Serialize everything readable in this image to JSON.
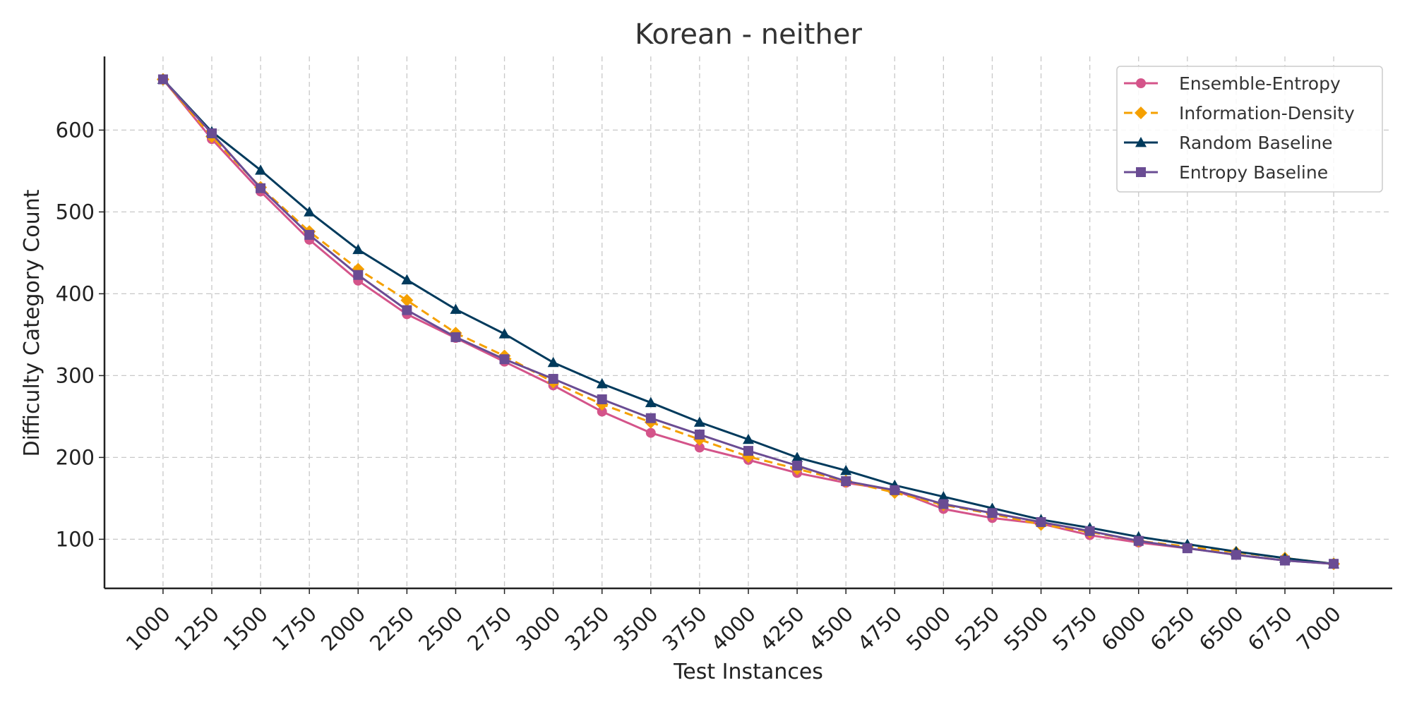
{
  "chart_data": {
    "type": "line",
    "title": "Korean - neither",
    "xlabel": "Test Instances",
    "ylabel": "Difficulty Category Count",
    "x": [
      1000,
      1250,
      1500,
      1750,
      2000,
      2250,
      2500,
      2750,
      3000,
      3250,
      3500,
      3750,
      4000,
      4250,
      4500,
      4750,
      5000,
      5250,
      5500,
      5750,
      6000,
      6250,
      6500,
      6750,
      7000
    ],
    "x_tick_labels": [
      "1000",
      "1250",
      "1500",
      "1750",
      "2000",
      "2250",
      "2500",
      "2750",
      "3000",
      "3250",
      "3500",
      "3750",
      "4000",
      "4250",
      "4500",
      "4750",
      "5000",
      "5250",
      "5500",
      "5750",
      "6000",
      "6250",
      "6500",
      "6750",
      "7000"
    ],
    "y_ticks": [
      100,
      200,
      300,
      400,
      500,
      600
    ],
    "y_tick_labels": [
      "100",
      "200",
      "300",
      "400",
      "500",
      "600"
    ],
    "xlim": [
      700,
      7300
    ],
    "ylim": [
      40,
      690
    ],
    "grid": true,
    "legend_position": "top-right",
    "series": [
      {
        "name": "Ensemble-Entropy",
        "color": "#d4548a",
        "marker": "circle",
        "line_style": "solid",
        "values": [
          662,
          589,
          525,
          466,
          416,
          375,
          346,
          317,
          288,
          256,
          230,
          212,
          197,
          181,
          169,
          160,
          137,
          126,
          119,
          105,
          96,
          89,
          81,
          74,
          70
        ]
      },
      {
        "name": "Information-Density",
        "color": "#f5a000",
        "marker": "diamond",
        "line_style": "dashed",
        "values": [
          662,
          592,
          530,
          476,
          430,
          392,
          352,
          324,
          292,
          265,
          243,
          222,
          201,
          186,
          171,
          157,
          142,
          131,
          118,
          109,
          98,
          91,
          84,
          77,
          70
        ]
      },
      {
        "name": "Random Baseline",
        "color": "#003a5c",
        "marker": "triangle",
        "line_style": "solid",
        "values": [
          662,
          598,
          551,
          500,
          454,
          417,
          381,
          351,
          316,
          290,
          267,
          243,
          222,
          200,
          184,
          166,
          152,
          138,
          124,
          114,
          103,
          94,
          85,
          77,
          70
        ]
      },
      {
        "name": "Entropy Baseline",
        "color": "#6a4c93",
        "marker": "square",
        "line_style": "solid",
        "values": [
          662,
          596,
          529,
          472,
          423,
          380,
          347,
          320,
          296,
          271,
          248,
          228,
          208,
          190,
          171,
          160,
          143,
          132,
          121,
          110,
          98,
          89,
          81,
          74,
          70
        ]
      }
    ]
  }
}
